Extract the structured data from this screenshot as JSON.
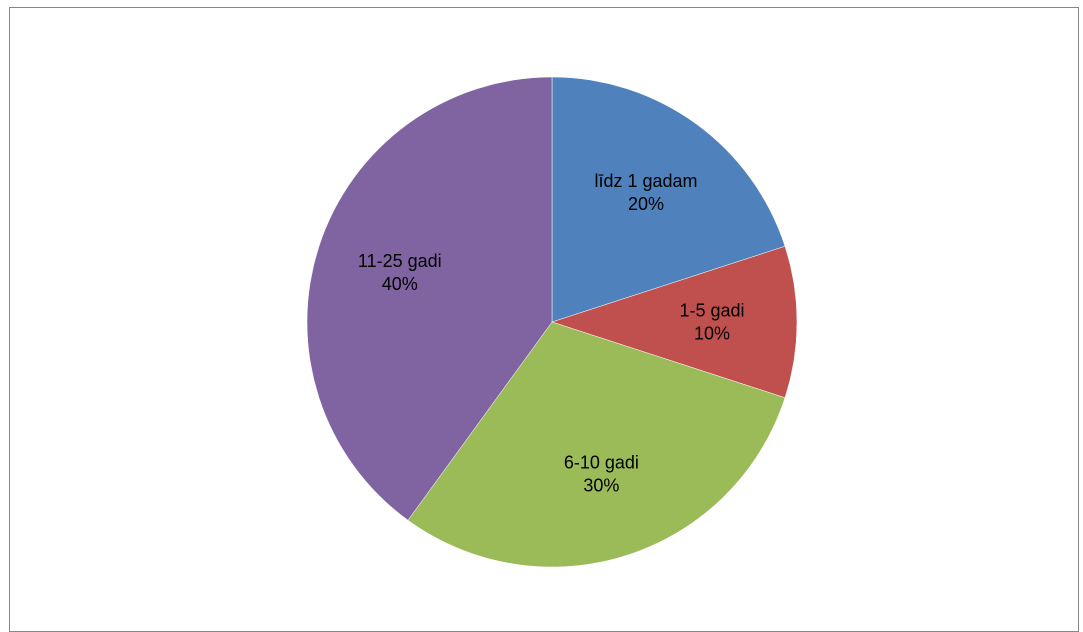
{
  "chart_data": {
    "type": "pie",
    "title": "",
    "slices": [
      {
        "label": "līdz 1 gadam",
        "value": 20,
        "percent_label": "20%",
        "color": "#4F81BD"
      },
      {
        "label": "1-5 gadi",
        "value": 10,
        "percent_label": "10%",
        "color": "#C0504D"
      },
      {
        "label": "6-10 gadi",
        "value": 30,
        "percent_label": "30%",
        "color": "#9BBB59"
      },
      {
        "label": "11-25 gadi",
        "value": 40,
        "percent_label": "40%",
        "color": "#8064A2"
      }
    ],
    "start_angle": "12 o'clock",
    "direction": "clockwise",
    "legend": "none",
    "data_labels": "inside"
  }
}
